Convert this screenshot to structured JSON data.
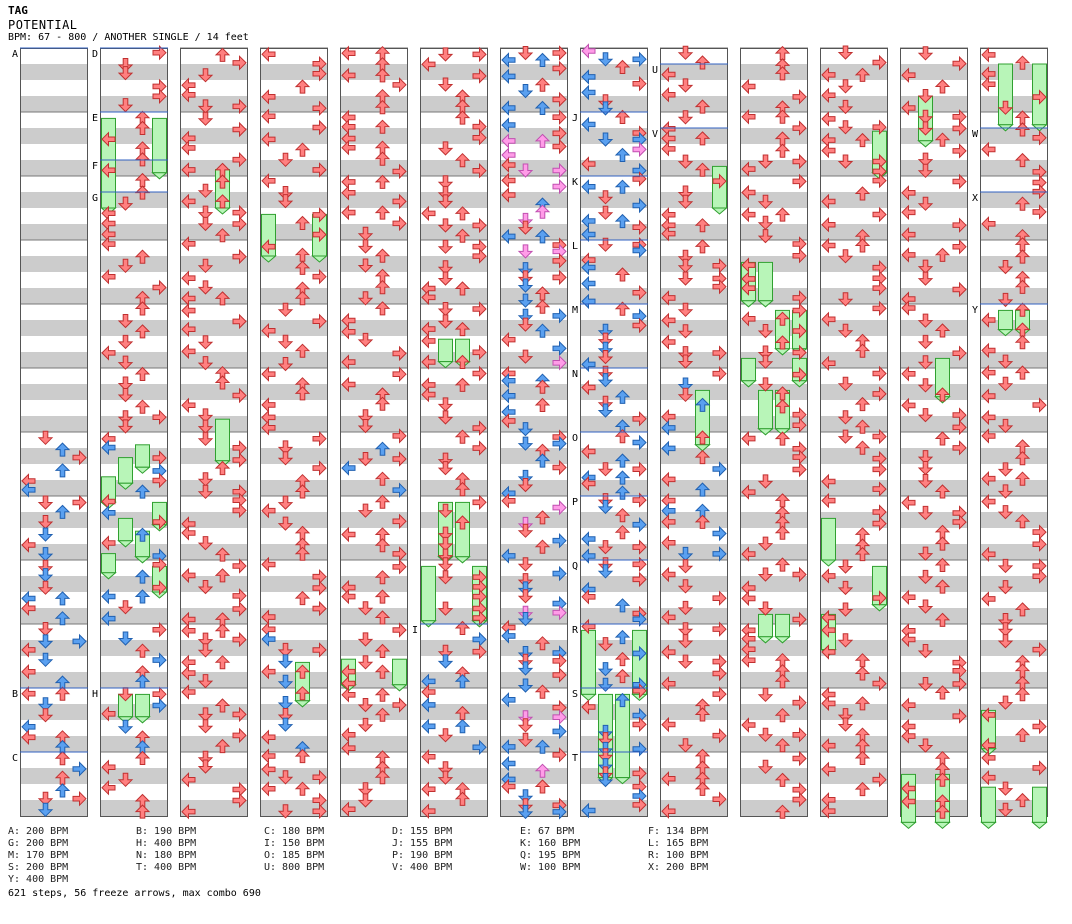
{
  "header": {
    "artist": "TAG",
    "title": "POTENTIAL",
    "info": "BPM: 67 - 800 / ANOTHER SINGLE / 14 feet"
  },
  "colors": {
    "red_arrow": "#ff8080",
    "blue_arrow": "#5aa0f0",
    "pink_arrow": "#ff9ce8",
    "freeze": "#b8f5b8",
    "freeze_border": "#30a030",
    "band_gray": "#cccccc",
    "marker_line": "#3060c0"
  },
  "chart_data": {
    "type": "step-chart",
    "columns": 13,
    "measures_per_column": 12,
    "bpm_markers": [
      {
        "label": "A",
        "col": 0,
        "measure": 0
      },
      {
        "label": "B",
        "col": 0,
        "measure": 10
      },
      {
        "label": "C",
        "col": 0,
        "measure": 11
      },
      {
        "label": "D",
        "col": 1,
        "measure": 0
      },
      {
        "label": "E",
        "col": 1,
        "measure": 1
      },
      {
        "label": "F",
        "col": 1,
        "measure": 1.75
      },
      {
        "label": "G",
        "col": 1,
        "measure": 2.25
      },
      {
        "label": "H",
        "col": 1,
        "measure": 10
      },
      {
        "label": "I",
        "col": 5,
        "measure": 9
      },
      {
        "label": "J",
        "col": 7,
        "measure": 1
      },
      {
        "label": "K",
        "col": 7,
        "measure": 2
      },
      {
        "label": "L",
        "col": 7,
        "measure": 3
      },
      {
        "label": "M",
        "col": 7,
        "measure": 4
      },
      {
        "label": "N",
        "col": 7,
        "measure": 5
      },
      {
        "label": "O",
        "col": 7,
        "measure": 6
      },
      {
        "label": "P",
        "col": 7,
        "measure": 7
      },
      {
        "label": "Q",
        "col": 7,
        "measure": 8
      },
      {
        "label": "R",
        "col": 7,
        "measure": 9
      },
      {
        "label": "S",
        "col": 7,
        "measure": 10
      },
      {
        "label": "T",
        "col": 7,
        "measure": 11
      },
      {
        "label": "U",
        "col": 8,
        "measure": 0.25
      },
      {
        "label": "V",
        "col": 8,
        "measure": 1.25
      },
      {
        "label": "W",
        "col": 12,
        "measure": 1.25
      },
      {
        "label": "X",
        "col": 12,
        "measure": 2.25
      },
      {
        "label": "Y",
        "col": 12,
        "measure": 4
      }
    ],
    "freezes": [
      {
        "col": 1,
        "lane": 0,
        "start": 1.1,
        "end": 2.5
      },
      {
        "col": 1,
        "lane": 3,
        "start": 1.1,
        "end": 1.95
      },
      {
        "col": 2,
        "lane": 2,
        "start": 1.9,
        "end": 2.5
      },
      {
        "col": 3,
        "lane": 0,
        "start": 2.6,
        "end": 3.25
      },
      {
        "col": 3,
        "lane": 3,
        "start": 2.6,
        "end": 3.25
      },
      {
        "col": 5,
        "lane": 1,
        "start": 4.55,
        "end": 4.9
      },
      {
        "col": 5,
        "lane": 2,
        "start": 4.55,
        "end": 4.9
      },
      {
        "col": 1,
        "lane": 2,
        "start": 6.2,
        "end": 6.55
      },
      {
        "col": 1,
        "lane": 1,
        "start": 6.4,
        "end": 6.8
      },
      {
        "col": 1,
        "lane": 0,
        "start": 6.7,
        "end": 7.1
      },
      {
        "col": 2,
        "lane": 2,
        "start": 5.8,
        "end": 6.45
      },
      {
        "col": 1,
        "lane": 1,
        "start": 7.35,
        "end": 7.7
      },
      {
        "col": 1,
        "lane": 2,
        "start": 7.55,
        "end": 7.95
      },
      {
        "col": 1,
        "lane": 3,
        "start": 7.1,
        "end": 7.45
      },
      {
        "col": 1,
        "lane": 0,
        "start": 7.9,
        "end": 8.2
      },
      {
        "col": 1,
        "lane": 3,
        "start": 8.1,
        "end": 8.5
      },
      {
        "col": 5,
        "lane": 1,
        "start": 7.1,
        "end": 7.95
      },
      {
        "col": 5,
        "lane": 2,
        "start": 7.1,
        "end": 7.95
      },
      {
        "col": 5,
        "lane": 0,
        "start": 8.1,
        "end": 8.95
      },
      {
        "col": 5,
        "lane": 3,
        "start": 8.1,
        "end": 8.95
      },
      {
        "col": 4,
        "lane": 0,
        "start": 9.55,
        "end": 9.95
      },
      {
        "col": 4,
        "lane": 3,
        "start": 9.55,
        "end": 9.95
      },
      {
        "col": 3,
        "lane": 2,
        "start": 9.6,
        "end": 10.2
      },
      {
        "col": 1,
        "lane": 1,
        "start": 10.1,
        "end": 10.45
      },
      {
        "col": 1,
        "lane": 2,
        "start": 10.1,
        "end": 10.45
      },
      {
        "col": 7,
        "lane": 0,
        "start": 9.1,
        "end": 10.1
      },
      {
        "col": 7,
        "lane": 3,
        "start": 9.1,
        "end": 10.1
      },
      {
        "col": 7,
        "lane": 1,
        "start": 10.1,
        "end": 11.4
      },
      {
        "col": 7,
        "lane": 2,
        "start": 10.1,
        "end": 11.4
      },
      {
        "col": 8,
        "lane": 2,
        "start": 5.35,
        "end": 6.2
      },
      {
        "col": 8,
        "lane": 3,
        "start": 1.85,
        "end": 2.5
      },
      {
        "col": 9,
        "lane": 0,
        "start": 3.35,
        "end": 3.95
      },
      {
        "col": 9,
        "lane": 1,
        "start": 3.35,
        "end": 3.95
      },
      {
        "col": 9,
        "lane": 2,
        "start": 4.1,
        "end": 4.7
      },
      {
        "col": 9,
        "lane": 3,
        "start": 4.1,
        "end": 4.7
      },
      {
        "col": 9,
        "lane": 0,
        "start": 4.85,
        "end": 5.2
      },
      {
        "col": 9,
        "lane": 3,
        "start": 4.85,
        "end": 5.2
      },
      {
        "col": 9,
        "lane": 1,
        "start": 5.35,
        "end": 5.95
      },
      {
        "col": 9,
        "lane": 2,
        "start": 5.35,
        "end": 5.95
      },
      {
        "col": 9,
        "lane": 1,
        "start": 8.85,
        "end": 9.2
      },
      {
        "col": 9,
        "lane": 2,
        "start": 8.85,
        "end": 9.2
      },
      {
        "col": 10,
        "lane": 3,
        "start": 1.3,
        "end": 1.95
      },
      {
        "col": 10,
        "lane": 0,
        "start": 7.35,
        "end": 8.0
      },
      {
        "col": 10,
        "lane": 3,
        "start": 8.1,
        "end": 8.7
      },
      {
        "col": 10,
        "lane": 0,
        "start": 8.85,
        "end": 9.4
      },
      {
        "col": 11,
        "lane": 1,
        "start": 0.75,
        "end": 1.45
      },
      {
        "col": 11,
        "lane": 2,
        "start": 4.85,
        "end": 5.45
      },
      {
        "col": 11,
        "lane": 0,
        "start": 11.35,
        "end": 12.1
      },
      {
        "col": 11,
        "lane": 2,
        "start": 11.35,
        "end": 12.1
      },
      {
        "col": 12,
        "lane": 1,
        "start": 0.25,
        "end": 1.2
      },
      {
        "col": 12,
        "lane": 3,
        "start": 0.25,
        "end": 1.2
      },
      {
        "col": 12,
        "lane": 1,
        "start": 4.1,
        "end": 4.4
      },
      {
        "col": 12,
        "lane": 2,
        "start": 4.1,
        "end": 4.4
      },
      {
        "col": 12,
        "lane": 0,
        "start": 10.35,
        "end": 10.95
      },
      {
        "col": 12,
        "lane": 0,
        "start": 11.55,
        "end": 12.1
      },
      {
        "col": 12,
        "lane": 3,
        "start": 11.55,
        "end": 12.1
      }
    ],
    "legend": [
      "A: 200 BPM",
      "B: 190 BPM",
      "C: 180 BPM",
      "D: 155 BPM",
      "E: 67 BPM",
      "F: 134 BPM",
      "G: 200 BPM",
      "H: 400 BPM",
      "I: 150 BPM",
      "J: 155 BPM",
      "K: 160 BPM",
      "L: 165 BPM",
      "M: 170 BPM",
      "N: 180 BPM",
      "O: 185 BPM",
      "P: 190 BPM",
      "Q: 195 BPM",
      "R: 100 BPM",
      "S: 200 BPM",
      "T: 400 BPM",
      "U: 800 BPM",
      "V: 400 BPM",
      "W: 100 BPM",
      "X: 200 BPM",
      "Y: 400 BPM"
    ]
  },
  "footer": {
    "summary": "621 steps, 56 freeze arrows, max combo 690"
  }
}
